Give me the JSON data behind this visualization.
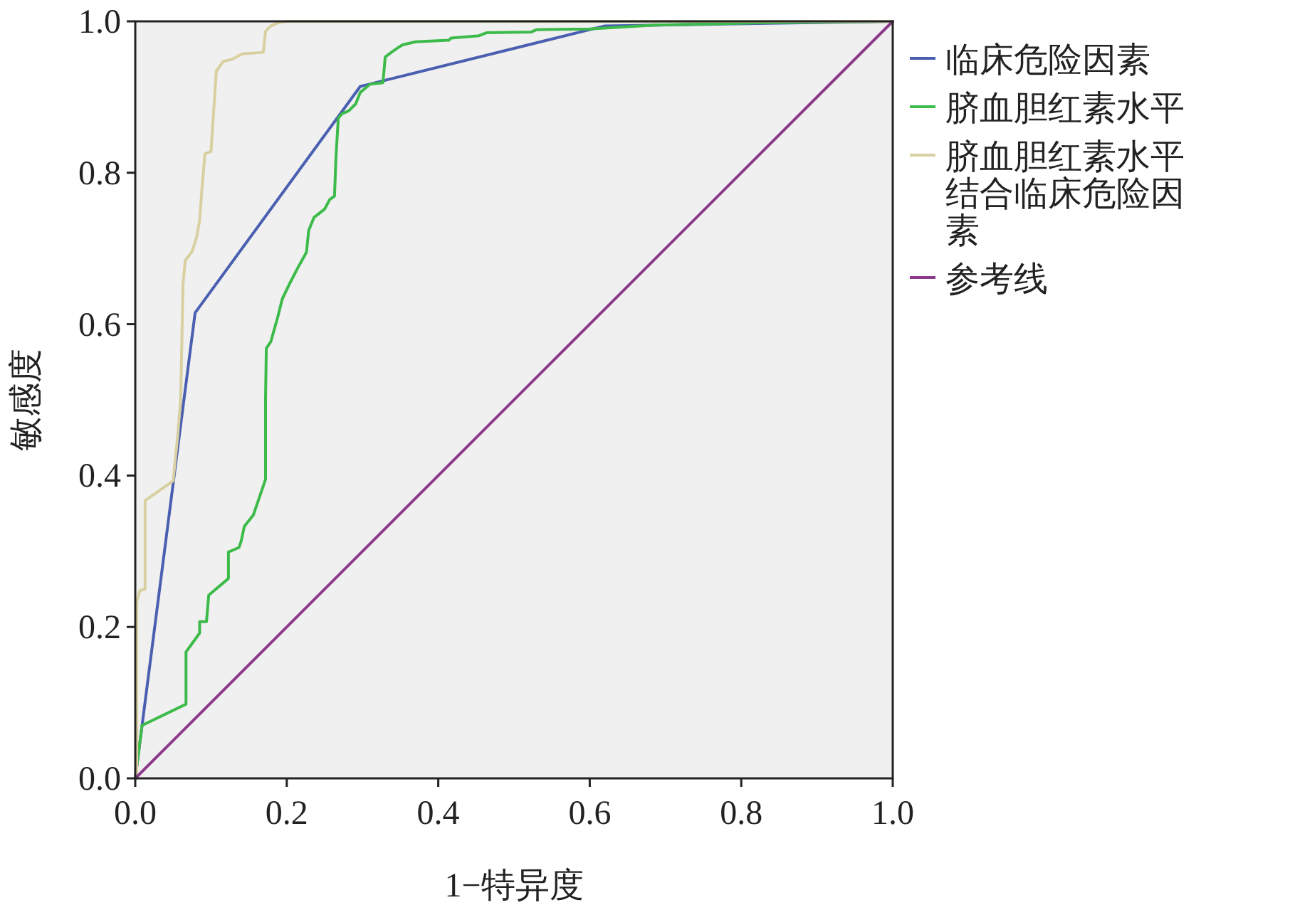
{
  "chart_data": {
    "type": "line",
    "xlabel": "1−特异度",
    "ylabel": "敏感度",
    "xlim": [
      0,
      1
    ],
    "ylim": [
      0,
      1
    ],
    "xticks": [
      {
        "value": 0,
        "label": "0.0"
      },
      {
        "value": 0.2,
        "label": "0.2"
      },
      {
        "value": 0.4,
        "label": "0.4"
      },
      {
        "value": 0.6,
        "label": "0.6"
      },
      {
        "value": 0.8,
        "label": "0.8"
      },
      {
        "value": 1,
        "label": "1.0"
      }
    ],
    "yticks": [
      {
        "value": 0,
        "label": "0.0"
      },
      {
        "value": 0.2,
        "label": "0.2"
      },
      {
        "value": 0.4,
        "label": "0.4"
      },
      {
        "value": 0.6,
        "label": "0.6"
      },
      {
        "value": 0.8,
        "label": "0.8"
      },
      {
        "value": 1,
        "label": "1.0"
      }
    ],
    "grid": false,
    "legend": "right",
    "series": [
      {
        "name": "临床危险因素",
        "color": "#4a5fb0",
        "x": [
          0,
          0.079,
          0.297,
          0.62,
          1
        ],
        "values": [
          0,
          0.615,
          0.914,
          0.994,
          1
        ]
      },
      {
        "name": "脐血胆红素水平",
        "color": "#3dbb4a",
        "x": [
          0,
          0.009,
          0.067,
          0.067,
          0.085,
          0.085,
          0.094,
          0.097,
          0.123,
          0.123,
          0.137,
          0.14,
          0.144,
          0.156,
          0.172,
          0.172,
          0.173,
          0.179,
          0.188,
          0.194,
          0.203,
          0.216,
          0.226,
          0.229,
          0.236,
          0.25,
          0.257,
          0.263,
          0.265,
          0.268,
          0.273,
          0.282,
          0.291,
          0.297,
          0.31,
          0.327,
          0.33,
          0.338,
          0.348,
          0.353,
          0.37,
          0.414,
          0.417,
          0.454,
          0.464,
          0.523,
          0.53,
          0.6,
          0.686,
          0.823,
          1
        ],
        "values": [
          0,
          0.07,
          0.098,
          0.167,
          0.192,
          0.207,
          0.207,
          0.242,
          0.264,
          0.299,
          0.305,
          0.314,
          0.333,
          0.348,
          0.395,
          0.502,
          0.568,
          0.577,
          0.609,
          0.633,
          0.652,
          0.677,
          0.695,
          0.724,
          0.741,
          0.752,
          0.765,
          0.769,
          0.821,
          0.872,
          0.878,
          0.882,
          0.891,
          0.906,
          0.917,
          0.919,
          0.953,
          0.959,
          0.966,
          0.969,
          0.973,
          0.975,
          0.978,
          0.981,
          0.985,
          0.986,
          0.989,
          0.99,
          0.995,
          0.998,
          1
        ]
      },
      {
        "name": "脐血胆红素水平结合临床危险因素",
        "color": "#d8d0a0",
        "x": [
          0,
          0.002,
          0.002,
          0.006,
          0.013,
          0.013,
          0.05,
          0.056,
          0.06,
          0.063,
          0.066,
          0.075,
          0.081,
          0.085,
          0.088,
          0.092,
          0.1,
          0.107,
          0.116,
          0.128,
          0.141,
          0.169,
          0.172,
          0.179,
          0.188,
          0.2,
          1
        ],
        "values": [
          0,
          0,
          0.233,
          0.248,
          0.25,
          0.367,
          0.393,
          0.452,
          0.502,
          0.652,
          0.684,
          0.696,
          0.715,
          0.737,
          0.778,
          0.825,
          0.828,
          0.934,
          0.947,
          0.95,
          0.957,
          0.959,
          0.987,
          0.994,
          0.998,
          1,
          1
        ]
      },
      {
        "name": "参考线",
        "color": "#8b3a8b",
        "x": [
          0,
          1
        ],
        "values": [
          0,
          1
        ]
      }
    ]
  }
}
